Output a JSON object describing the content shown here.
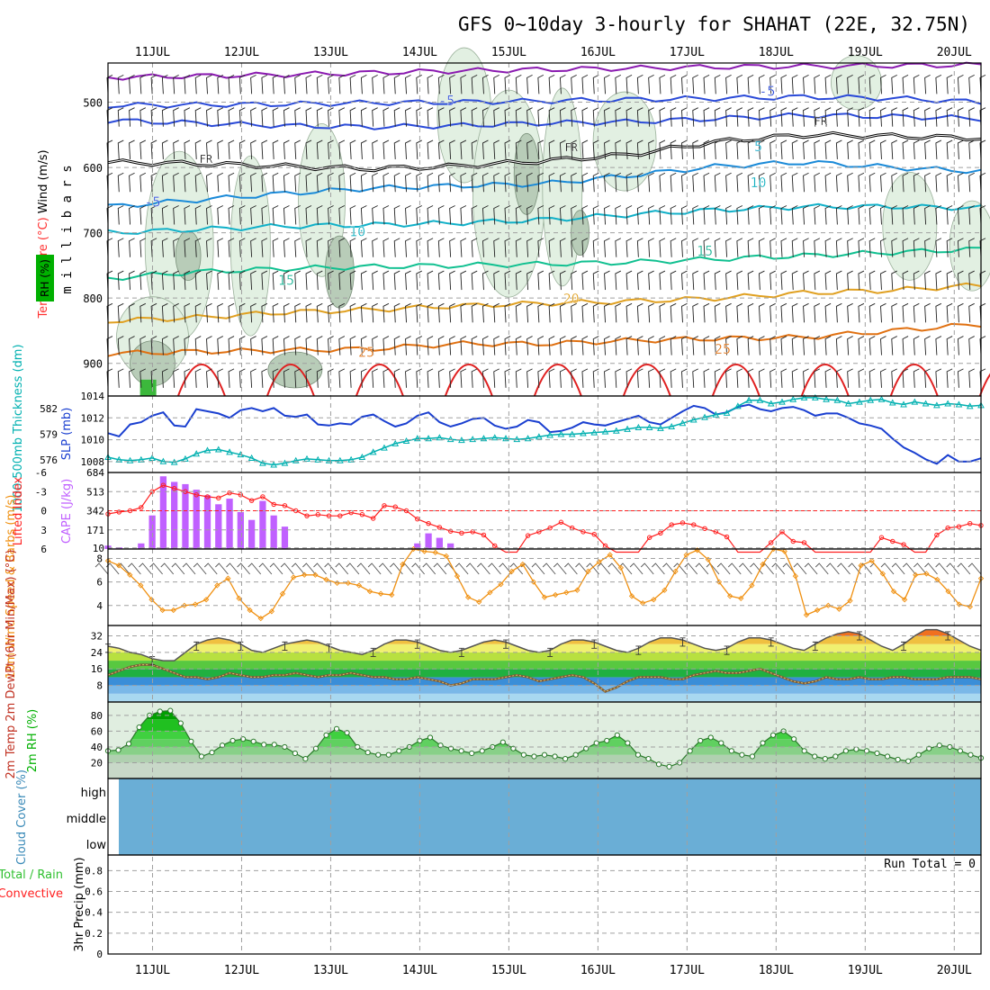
{
  "title": "GFS 0~10day 3-hourly for SHAHAT (22E, 32.75N)",
  "colors": {
    "upper_axis_label": "#000000",
    "temperature": "#ff3030",
    "wind_label": "#000000",
    "rh_green": "#00b000",
    "thickness": "#00b0b0",
    "slp": "#1a3fd0",
    "lifted_index": "#ff2020",
    "cape": "#c060ff",
    "wind10": "#f09010",
    "cloud": "#6aaed6",
    "precip_total": "#30c030",
    "precip_conv": "#ff2020",
    "grid": "#a0a0a0"
  },
  "chart_data": [
    {
      "type": "line",
      "panel": "upper_air",
      "title": "Upper air RH / Temperature / Wind",
      "ylabel": "m i l l i b a r s",
      "side_labels": [
        "Wind (m/s)",
        "Temperature (°C)",
        "RH (%)"
      ],
      "date_labels": [
        "11JUL",
        "12JUL",
        "13JUL",
        "14JUL",
        "15JUL",
        "16JUL",
        "17JUL",
        "18JUL",
        "19JUL",
        "20JUL"
      ],
      "pressure_ticks": [
        500,
        600,
        700,
        800,
        900
      ],
      "ylim": [
        950,
        440
      ],
      "xlim": [
        10.5,
        20.3
      ],
      "isotherm_labels": [
        {
          "text": "-5",
          "x": 11.0,
          "p": 660
        },
        {
          "text": "-5",
          "x": 14.3,
          "p": 505
        },
        {
          "text": "-5",
          "x": 17.9,
          "p": 490
        },
        {
          "text": "5",
          "x": 17.8,
          "p": 575
        },
        {
          "text": "10",
          "x": 13.3,
          "p": 705
        },
        {
          "text": "10",
          "x": 17.8,
          "p": 630
        },
        {
          "text": "15",
          "x": 12.5,
          "p": 780
        },
        {
          "text": "15",
          "x": 17.2,
          "p": 735
        },
        {
          "text": "20",
          "x": 15.7,
          "p": 808
        },
        {
          "text": "25",
          "x": 13.4,
          "p": 890
        },
        {
          "text": "25",
          "x": 17.4,
          "p": 885
        },
        {
          "text": "FR",
          "x": 11.6,
          "p": 593
        },
        {
          "text": "FR",
          "x": 15.7,
          "p": 575
        },
        {
          "text": "FR",
          "x": 18.5,
          "p": 535
        }
      ],
      "isotherms": [
        {
          "name": "-20",
          "color": "#8a1ab0",
          "p": [
            462,
            460,
            458,
            455,
            452,
            450,
            448,
            446,
            445,
            444,
            443
          ]
        },
        {
          "name": "-15",
          "color": "#2a4ad8",
          "p": [
            505,
            504,
            503,
            501,
            500,
            498,
            496,
            494,
            492,
            494,
            500
          ]
        },
        {
          "name": "-10",
          "color": "#2a4ad8",
          "p": [
            528,
            532,
            536,
            538,
            536,
            532,
            530,
            525,
            520,
            522,
            525
          ]
        },
        {
          "name": "FR",
          "color": "#000000",
          "p": [
            592,
            594,
            598,
            602,
            598,
            590,
            580,
            560,
            550,
            552,
            555
          ]
        },
        {
          "name": "-5",
          "color": "#1a8ad8",
          "p": [
            660,
            650,
            640,
            632,
            628,
            625,
            612,
            598,
            592,
            600,
            606
          ]
        },
        {
          "name": "5",
          "color": "#10b0c8",
          "p": [
            700,
            695,
            690,
            688,
            685,
            680,
            672,
            665,
            660,
            660,
            662
          ]
        },
        {
          "name": "10",
          "color": "#10c090",
          "p": [
            770,
            760,
            755,
            752,
            750,
            748,
            745,
            740,
            735,
            730,
            725
          ]
        },
        {
          "name": "20",
          "color": "#e0a020",
          "p": [
            835,
            830,
            822,
            818,
            812,
            808,
            805,
            800,
            792,
            788,
            780
          ]
        },
        {
          "name": "25",
          "color": "#e07010",
          "p": [
            885,
            882,
            880,
            878,
            870,
            870,
            865,
            862,
            860,
            850,
            840
          ]
        }
      ]
    },
    {
      "type": "line",
      "panel": "slp_thickness",
      "xlim": [
        10.5,
        20.3
      ],
      "slp_label": "SLP (mb)",
      "thickness_label": "1000-500mb Thickness (dm)",
      "slp_ticks": [
        1008,
        1010,
        1012,
        1014
      ],
      "slp_ylim": [
        1007,
        1014
      ],
      "thickness_ticks": [
        576,
        579,
        582
      ],
      "thickness_ylim": [
        574.5,
        583.5
      ],
      "slp": [
        1010.6,
        1010.3,
        1011.4,
        1011.6,
        1012.2,
        1012.5,
        1011.3,
        1011.2,
        1012.8,
        1012.6,
        1012.4,
        1012.0,
        1012.7,
        1012.9,
        1012.6,
        1012.9,
        1012.2,
        1012.1,
        1012.3,
        1011.4,
        1011.3,
        1011.5,
        1011.4,
        1012.1,
        1012.3,
        1011.7,
        1011.2,
        1011.5,
        1012.2,
        1012.5,
        1011.6,
        1011.2,
        1011.5,
        1011.9,
        1012.0,
        1011.3,
        1011.0,
        1011.2,
        1011.8,
        1011.6,
        1010.7,
        1010.8,
        1011.1,
        1011.6,
        1011.4,
        1011.3,
        1011.6,
        1011.9,
        1012.2,
        1011.6,
        1011.4,
        1012.0,
        1012.6,
        1013.1,
        1012.9,
        1012.3,
        1012.5,
        1013.0,
        1013.2,
        1012.8,
        1012.6,
        1012.9,
        1013.0,
        1012.7,
        1012.2,
        1012.4,
        1012.4,
        1012.0,
        1011.5,
        1011.3,
        1011.0,
        1010.1,
        1009.3,
        1008.8,
        1008.2,
        1007.8,
        1008.6,
        1008.0,
        1008.0,
        1008.3
      ],
      "thickness": [
        576.3,
        576.0,
        575.9,
        576.0,
        576.2,
        575.8,
        575.7,
        576.1,
        576.7,
        577.1,
        577.2,
        576.9,
        576.6,
        576.2,
        575.6,
        575.4,
        575.6,
        575.9,
        576.1,
        576.0,
        575.9,
        575.9,
        576.0,
        576.3,
        576.9,
        577.4,
        577.9,
        578.2,
        578.5,
        578.5,
        578.6,
        578.4,
        578.3,
        578.4,
        578.5,
        578.6,
        578.5,
        578.4,
        578.5,
        578.7,
        578.9,
        579.0,
        579.0,
        579.1,
        579.2,
        579.3,
        579.4,
        579.6,
        579.8,
        579.8,
        579.7,
        579.9,
        580.3,
        580.7,
        581.0,
        581.3,
        581.5,
        582.3,
        583.0,
        583.0,
        582.6,
        582.8,
        583.1,
        583.3,
        583.3,
        583.1,
        583.0,
        582.6,
        582.8,
        583.0,
        583.1,
        582.7,
        582.5,
        582.8,
        582.6,
        582.4,
        582.6,
        582.5,
        582.3,
        582.4
      ]
    },
    {
      "type": "bar",
      "panel": "cape_li",
      "xlim": [
        10.5,
        20.3
      ],
      "li_label": "Lifted Index",
      "cape_label": "CAPE (J/kg)",
      "li_ticks": [
        -6,
        -3,
        0,
        3,
        6
      ],
      "li_ylim": [
        6,
        -6
      ],
      "cape_ticks": [
        10,
        171,
        342,
        513,
        684
      ],
      "cape_ylim": [
        0,
        684
      ],
      "cape": [
        30,
        15,
        0,
        50,
        300,
        650,
        600,
        580,
        530,
        480,
        400,
        450,
        330,
        260,
        430,
        300,
        200,
        0,
        0,
        0,
        0,
        0,
        0,
        0,
        0,
        0,
        0,
        0,
        50,
        140,
        100,
        50,
        0,
        0,
        0,
        0,
        0,
        0,
        0,
        0,
        0,
        0,
        0,
        0,
        0,
        0,
        0,
        0,
        0,
        0,
        0,
        0,
        0,
        0,
        0,
        0,
        0,
        0,
        0,
        0,
        0,
        0,
        0,
        0,
        0,
        0,
        0,
        0,
        0,
        0,
        0,
        0,
        0,
        0,
        0,
        0,
        0,
        0,
        0,
        0
      ],
      "lifted_index": [
        0.5,
        0.2,
        0,
        -0.5,
        -3,
        -4,
        -3.5,
        -3,
        -2.5,
        -2.2,
        -2,
        -2.8,
        -2.5,
        -1.6,
        -2.2,
        -1,
        -0.8,
        0,
        0.8,
        0.6,
        0.8,
        0.8,
        0.3,
        0.6,
        1.2,
        -0.8,
        -0.6,
        0,
        1.3,
        2,
        2.6,
        3.2,
        3.5,
        3.3,
        3.8,
        5.5,
        6.5,
        6.5,
        3.9,
        3.3,
        2.7,
        1.8,
        2.7,
        3.3,
        3.7,
        5.5,
        6.5,
        6.5,
        6.5,
        4.2,
        3.5,
        2.2,
        1.9,
        2.2,
        2.8,
        3.3,
        4.1,
        6.5,
        6.5,
        6.5,
        5.0,
        3.3,
        4.8,
        5.0,
        6.5,
        6.5,
        6.5,
        6.5,
        6.5,
        6.5,
        4.2,
        4.8,
        5.3,
        6.5,
        6.5,
        3.8,
        2.7,
        2.5,
        2.0,
        2.3
      ]
    },
    {
      "type": "line",
      "panel": "wind10m",
      "xlim": [
        10.5,
        20.3
      ],
      "label": "10m Wind Speed & Barbs (m/s)",
      "ticks": [
        4,
        6,
        8
      ],
      "ylim": [
        2.3,
        8.8
      ],
      "speed": [
        7.8,
        7.4,
        6.6,
        5.7,
        4.5,
        3.6,
        3.6,
        4.0,
        4.1,
        4.5,
        5.7,
        6.3,
        4.6,
        3.6,
        2.9,
        3.5,
        5.0,
        6.4,
        6.6,
        6.6,
        6.2,
        5.9,
        5.9,
        5.7,
        5.2,
        5.0,
        4.9,
        7.5,
        8.8,
        8.6,
        8.5,
        8.2,
        6.5,
        4.7,
        4.3,
        5.1,
        5.8,
        6.9,
        7.5,
        6.0,
        4.7,
        4.9,
        5.1,
        5.3,
        6.9,
        7.7,
        8.3,
        7.2,
        4.8,
        4.2,
        4.5,
        5.3,
        6.9,
        8.3,
        8.7,
        7.9,
        6.0,
        4.8,
        4.6,
        5.7,
        7.5,
        8.8,
        8.6,
        6.5,
        3.2,
        3.6,
        4.0,
        3.7,
        4.4,
        7.4,
        7.8,
        6.7,
        5.2,
        4.5,
        6.6,
        6.7,
        6.2,
        5.2,
        4.1,
        3.9,
        6.3
      ]
    },
    {
      "type": "area",
      "panel": "temp2m",
      "xlim": [
        10.5,
        20.3
      ],
      "label": "2m Temp 2m DewPt (6hr Min/Max) (°C)",
      "ticks": [
        8,
        16,
        24,
        32
      ],
      "ylim": [
        0,
        37
      ],
      "temp": [
        27,
        26,
        24,
        23,
        21,
        20,
        20,
        24,
        28,
        30,
        31,
        30,
        28,
        25,
        24,
        26,
        28,
        29,
        30,
        29,
        27,
        25,
        24,
        23,
        25,
        28,
        30,
        30,
        29,
        27,
        25,
        24,
        25,
        27,
        29,
        30,
        29,
        27,
        25,
        24,
        25,
        28,
        30,
        30,
        29,
        27,
        25,
        24,
        26,
        29,
        31,
        31,
        30,
        28,
        26,
        25,
        26,
        29,
        31,
        31,
        30,
        28,
        26,
        25,
        28,
        31,
        33,
        34,
        33,
        30,
        27,
        25,
        28,
        32,
        35,
        35,
        33,
        30,
        27,
        25
      ],
      "dewpt": [
        13,
        15,
        17,
        18,
        18,
        16,
        14,
        12,
        12,
        11,
        12,
        14,
        13,
        12,
        12,
        13,
        13,
        14,
        13,
        12,
        13,
        13,
        14,
        13,
        12,
        12,
        11,
        11,
        12,
        11,
        10,
        8,
        9,
        11,
        11,
        11,
        12,
        13,
        12,
        10,
        11,
        12,
        13,
        12,
        9,
        5,
        7,
        10,
        12,
        12,
        12,
        11,
        11,
        13,
        14,
        15,
        14,
        14,
        15,
        16,
        14,
        12,
        10,
        9,
        10,
        12,
        11,
        11,
        12,
        11,
        11,
        12,
        12,
        11,
        11,
        11,
        12,
        12,
        12,
        11
      ]
    },
    {
      "type": "area",
      "panel": "rh2m",
      "xlim": [
        10.5,
        20.3
      ],
      "label": "2m RH (%)",
      "ticks": [
        20,
        40,
        60,
        80
      ],
      "ylim": [
        0,
        97
      ],
      "rh": [
        35,
        36,
        44,
        65,
        80,
        85,
        86,
        70,
        47,
        28,
        33,
        42,
        48,
        50,
        47,
        43,
        43,
        40,
        32,
        25,
        38,
        55,
        63,
        58,
        40,
        33,
        30,
        30,
        35,
        40,
        48,
        52,
        42,
        38,
        35,
        32,
        35,
        40,
        46,
        38,
        30,
        28,
        30,
        28,
        25,
        30,
        38,
        45,
        48,
        55,
        45,
        30,
        25,
        18,
        15,
        20,
        35,
        48,
        52,
        45,
        35,
        30,
        28,
        45,
        55,
        60,
        50,
        35,
        28,
        25,
        28,
        35,
        37,
        35,
        32,
        28,
        24,
        22,
        30,
        38,
        42,
        40,
        35,
        30,
        26
      ]
    },
    {
      "type": "area",
      "panel": "cloud",
      "xlim": [
        10.5,
        20.3
      ],
      "label": "Cloud Cover (%)",
      "levels": [
        "high",
        "middle",
        "low"
      ],
      "cover_pct": [
        0,
        0,
        0
      ]
    },
    {
      "type": "bar",
      "panel": "precip",
      "xlim": [
        10.5,
        20.3
      ],
      "label_total": "Total / Rain",
      "label_conv": "Convective",
      "ylabel": "3hr Precip (mm)",
      "ticks": [
        0,
        0.2,
        0.4,
        0.6,
        0.8
      ],
      "ylim": [
        0,
        0.95
      ],
      "run_total": "Run Total = 0",
      "values": []
    }
  ]
}
